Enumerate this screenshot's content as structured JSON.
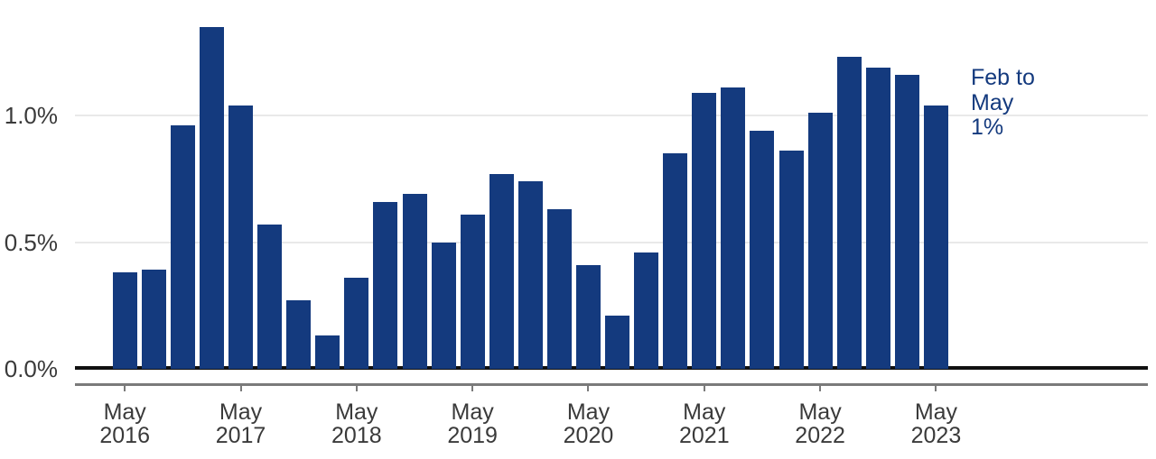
{
  "chart": {
    "y_axis": {
      "tick_labels": [
        "0.0%",
        "0.5%",
        "1.0%"
      ]
    },
    "x_axis": {
      "ticks": [
        {
          "line1": "May",
          "line2": "2016"
        },
        {
          "line1": "May",
          "line2": "2017"
        },
        {
          "line1": "May",
          "line2": "2018"
        },
        {
          "line1": "May",
          "line2": "2019"
        },
        {
          "line1": "May",
          "line2": "2020"
        },
        {
          "line1": "May",
          "line2": "2021"
        },
        {
          "line1": "May",
          "line2": "2022"
        },
        {
          "line1": "May",
          "line2": "2023"
        }
      ]
    },
    "annotation": {
      "lines": [
        "Feb to",
        "May",
        "1%"
      ]
    },
    "colors": {
      "bar": "#143a7e",
      "annotation_text": "#143a7e",
      "gridline": "#e9e9e9",
      "zero_line": "#111111",
      "axis_line": "#7a7a7a",
      "label_text": "#3a3a3a"
    }
  },
  "chart_data": {
    "type": "bar",
    "title": "",
    "xlabel": "",
    "ylabel": "",
    "unit": "percent",
    "categories": [
      "May 2016",
      "Aug 2016",
      "Nov 2016",
      "Feb 2017",
      "May 2017",
      "Aug 2017",
      "Nov 2017",
      "Feb 2018",
      "May 2018",
      "Aug 2018",
      "Nov 2018",
      "Feb 2019",
      "May 2019",
      "Aug 2019",
      "Nov 2019",
      "Feb 2020",
      "May 2020",
      "Aug 2020",
      "Nov 2020",
      "Feb 2021",
      "May 2021",
      "Aug 2021",
      "Nov 2021",
      "Feb 2022",
      "May 2022",
      "Aug 2022",
      "Nov 2022",
      "Feb 2023",
      "May 2023"
    ],
    "values": [
      0.38,
      0.39,
      0.96,
      1.35,
      1.04,
      0.57,
      0.27,
      0.13,
      0.36,
      0.66,
      0.69,
      0.5,
      0.61,
      0.77,
      0.74,
      0.63,
      0.41,
      0.21,
      0.46,
      0.85,
      1.09,
      1.11,
      0.94,
      0.86,
      1.01,
      1.23,
      1.19,
      1.16,
      1.04
    ],
    "yticks": [
      0,
      0.5,
      1.0
    ],
    "ytick_labels": [
      "0.0%",
      "0.5%",
      "1.0%"
    ],
    "ylim": [
      0,
      1.4
    ],
    "xtick_every": 4,
    "xtick_start_index": 0,
    "annotation": "Feb to May 1%",
    "legend": "none",
    "grid": "horizontal"
  }
}
